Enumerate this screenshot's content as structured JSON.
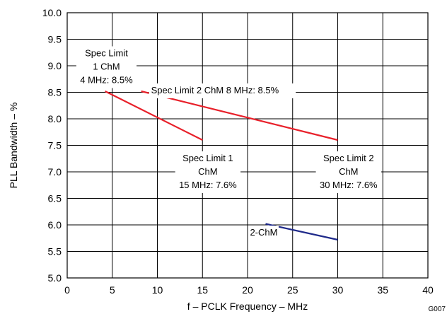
{
  "chart_data": {
    "type": "line",
    "xlabel": "f – PCLK Frequency – MHz",
    "ylabel": "PLL Bandwidth – %",
    "xlim": [
      0,
      40
    ],
    "ylim": [
      5.0,
      10.0
    ],
    "xticks": [
      "0",
      "5",
      "10",
      "15",
      "20",
      "25",
      "30",
      "35",
      "40"
    ],
    "yticks": [
      "5.0",
      "5.5",
      "6.0",
      "6.5",
      "7.0",
      "7.5",
      "8.0",
      "8.5",
      "9.0",
      "9.5",
      "10.0"
    ],
    "grid": true,
    "figure_id": "G007",
    "colors": {
      "spec": "#e8202a",
      "measured": "#1f2a8a"
    },
    "series": [
      {
        "x": [
          4.2,
          15.0
        ],
        "y": [
          8.52,
          7.6
        ],
        "color": "#e8202a"
      },
      {
        "x": [
          8.2,
          30.0
        ],
        "y": [
          8.52,
          7.6
        ],
        "color": "#e8202a"
      },
      {
        "x": [
          22.0,
          30.0
        ],
        "y": [
          6.02,
          5.72
        ],
        "color": "#1f2a8a"
      }
    ],
    "annotations": [
      {
        "lines": [
          "Spec Limit",
          "1 ChM",
          "4 MHz: 8.5%"
        ]
      },
      {
        "lines": [
          "Spec Limit 2 ChM 8 MHz: 8.5%"
        ]
      },
      {
        "lines": [
          "Spec Limit 1",
          "ChM",
          "15 MHz: 7.6%"
        ]
      },
      {
        "lines": [
          "Spec Limit 2",
          "ChM",
          "30 MHz: 7.6%"
        ]
      },
      {
        "lines": [
          "2-ChM"
        ]
      }
    ]
  }
}
